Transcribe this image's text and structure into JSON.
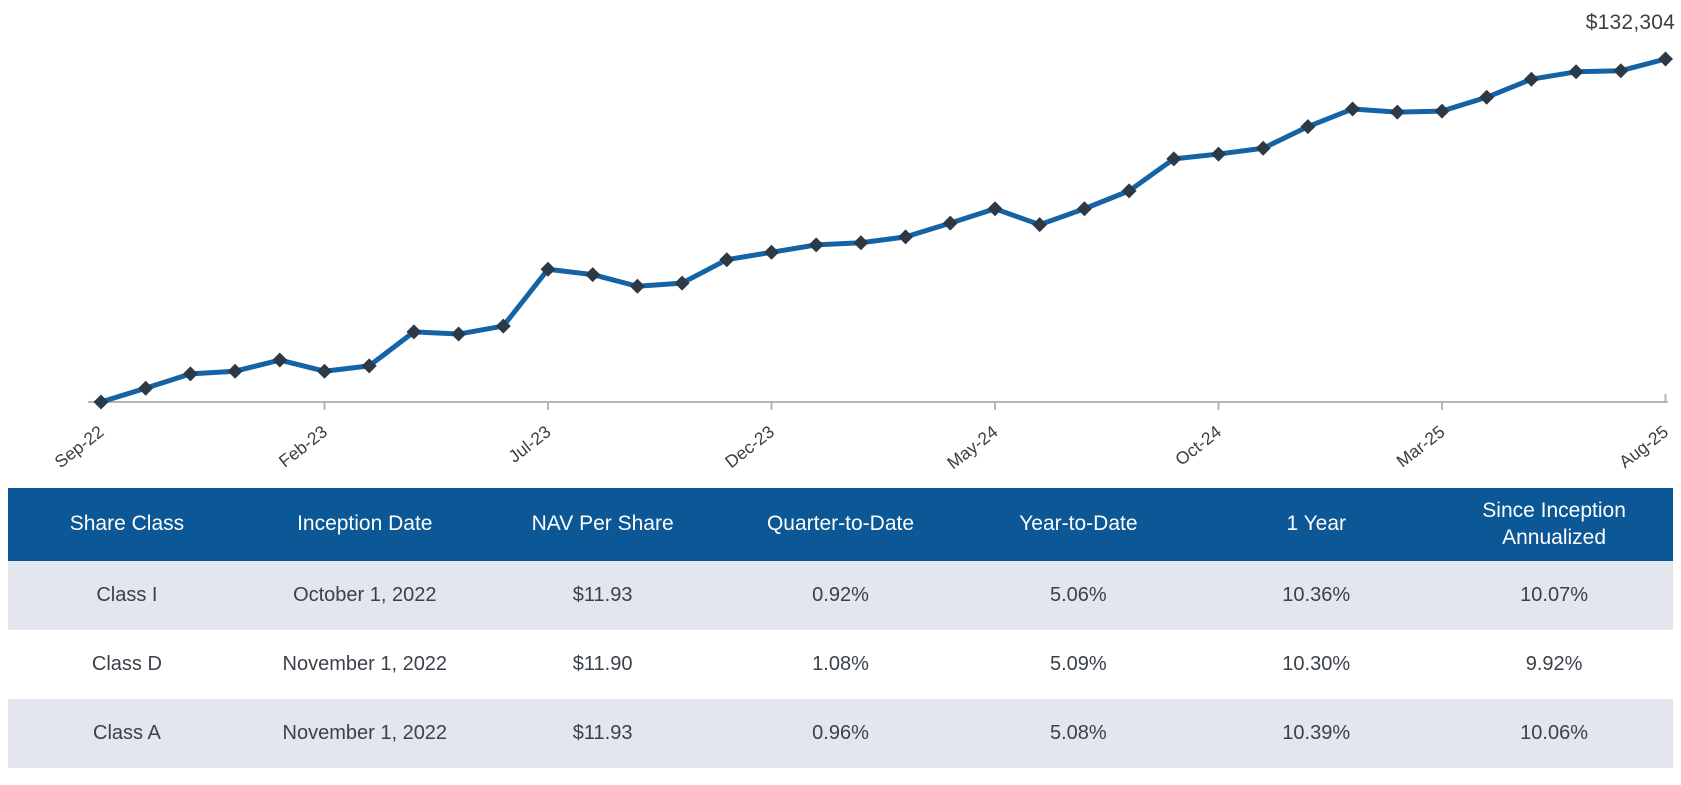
{
  "chart_data": {
    "type": "line",
    "title": "",
    "x": [
      "Sep-22",
      "Oct-22",
      "Nov-22",
      "Dec-22",
      "Jan-23",
      "Feb-23",
      "Mar-23",
      "Apr-23",
      "May-23",
      "Jun-23",
      "Jul-23",
      "Aug-23",
      "Sep-23",
      "Oct-23",
      "Nov-23",
      "Dec-23",
      "Jan-24",
      "Feb-24",
      "Mar-24",
      "Apr-24",
      "May-24",
      "Jun-24",
      "Jul-24",
      "Aug-24",
      "Sep-24",
      "Oct-24",
      "Nov-24",
      "Dec-24",
      "Jan-25",
      "Feb-25",
      "Mar-25",
      "Apr-25",
      "May-25",
      "Jun-25",
      "Jul-25",
      "Aug-25"
    ],
    "values": [
      100000,
      101300,
      102650,
      102900,
      103950,
      102900,
      103400,
      106600,
      106400,
      107150,
      112500,
      112000,
      110900,
      111200,
      113400,
      114100,
      114800,
      115000,
      115550,
      116850,
      118200,
      116700,
      118200,
      119884,
      122900,
      123350,
      123900,
      125932,
      127600,
      127300,
      127400,
      128700,
      130400,
      131098,
      131200,
      132304
    ],
    "xtick_labels": [
      "Sep-22",
      "Feb-23",
      "Jul-23",
      "Dec-23",
      "May-24",
      "Oct-24",
      "Mar-25",
      "Aug-25"
    ],
    "xtick_every": 5,
    "ylim": [
      100000,
      132304
    ],
    "end_label": "$132,304",
    "marker_shape": "diamond",
    "grid": false,
    "legend": false,
    "line_color": "#1563a5",
    "marker_color": "#2c3947",
    "axis_color": "#b6b6b6",
    "tick_label_color": "#3d3d3d",
    "end_label_color": "#3f3f3f"
  },
  "table": {
    "headers": [
      "Share Class",
      "Inception Date",
      "NAV Per Share",
      "Quarter-to-Date",
      "Year-to-Date",
      "1 Year",
      "Since Inception Annualized"
    ],
    "rows": [
      {
        "cells": [
          "Class I",
          "October 1, 2022",
          "$11.93",
          "0.92%",
          "5.06%",
          "10.36%",
          "10.07%"
        ]
      },
      {
        "cells": [
          "Class D",
          "November 1, 2022",
          "$11.90",
          "1.08%",
          "5.09%",
          "10.30%",
          "9.92%"
        ]
      },
      {
        "cells": [
          "Class A",
          "November 1, 2022",
          "$11.93",
          "0.96%",
          "5.08%",
          "10.39%",
          "10.06%"
        ]
      }
    ],
    "header_bg": "#0c5795",
    "header_text_color": "#ffffff",
    "row_bg": "#ffffff",
    "row_alt_bg": "#e3e6ed",
    "cell_text_color": "#3a4149"
  }
}
